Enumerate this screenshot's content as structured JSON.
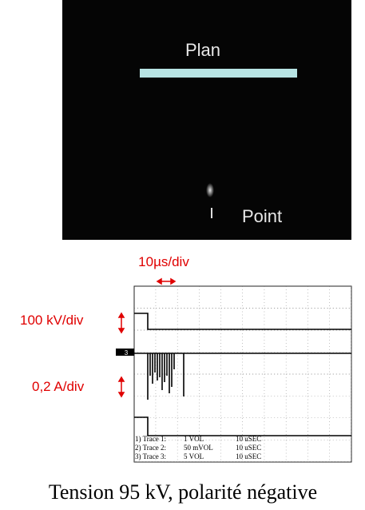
{
  "photo": {
    "labels": [
      "Plan",
      "Point"
    ]
  },
  "oscilloscope": {
    "time_scale": "10µs/div",
    "voltage_scale": "100 kV/div",
    "current_scale": "0,2 A/div",
    "marker": "3",
    "traces": [
      {
        "label": "1) Trace 1:",
        "scale": "1 VOL",
        "time": "10 uSEC"
      },
      {
        "label": "2) Trace 2:",
        "scale": "50 mVOL",
        "time": "10 uSEC"
      },
      {
        "label": "3) Trace 3:",
        "scale": "5 VOL",
        "time": "10 uSEC"
      }
    ]
  },
  "caption": "Tension 95 kV, polarité négative"
}
